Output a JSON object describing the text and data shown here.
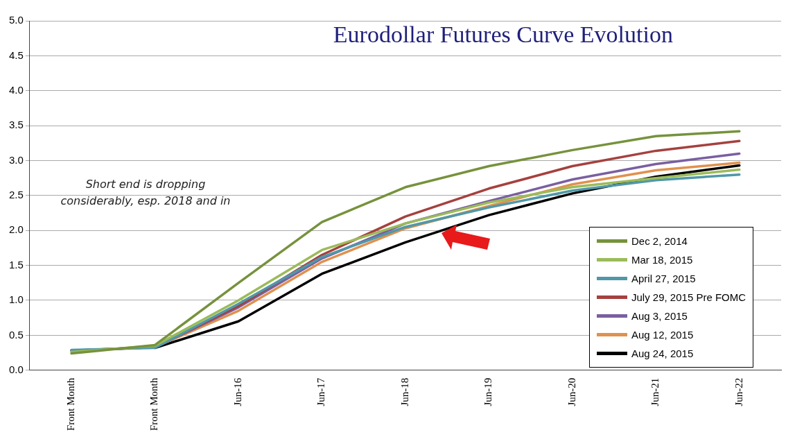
{
  "chart_data": {
    "type": "line",
    "title": "Eurodollar Futures Curve Evolution",
    "categories": [
      "Front Month",
      "Front Month",
      "Jun-16",
      "Jun-17",
      "Jun-18",
      "Jun-19",
      "Jun-20",
      "Jun-21",
      "Jun-22"
    ],
    "series": [
      {
        "name": "Dec 2, 2014",
        "color": "#76923c",
        "values": [
          0.24,
          0.36,
          1.25,
          2.12,
          2.62,
          2.92,
          3.15,
          3.35,
          3.42
        ]
      },
      {
        "name": "Mar 18, 2015",
        "color": "#9bbb59",
        "values": [
          0.26,
          0.35,
          1.0,
          1.72,
          2.1,
          2.4,
          2.62,
          2.75,
          2.87
        ]
      },
      {
        "name": "April 27, 2015",
        "color": "#4f98a8",
        "values": [
          0.29,
          0.32,
          0.95,
          1.62,
          2.05,
          2.33,
          2.57,
          2.72,
          2.8
        ]
      },
      {
        "name": "July 29, 2015 Pre FOMC",
        "color": "#a5413e",
        "values": [
          0.28,
          0.33,
          0.92,
          1.65,
          2.2,
          2.6,
          2.92,
          3.14,
          3.28
        ]
      },
      {
        "name": "Aug 3, 2015",
        "color": "#7a5fa0",
        "values": [
          0.28,
          0.33,
          0.9,
          1.6,
          2.1,
          2.42,
          2.73,
          2.95,
          3.1
        ]
      },
      {
        "name": "Aug 12, 2015",
        "color": "#e0914f",
        "values": [
          0.28,
          0.33,
          0.85,
          1.55,
          2.03,
          2.35,
          2.66,
          2.86,
          2.97
        ]
      },
      {
        "name": "Aug 24, 2015",
        "color": "#000000",
        "values": [
          null,
          0.32,
          0.7,
          1.38,
          1.83,
          2.22,
          2.53,
          2.77,
          2.93
        ]
      }
    ],
    "ylim": [
      0,
      5
    ],
    "yticks": [
      {
        "value": 0,
        "label": "0.0"
      },
      0.5,
      {
        "value": 1,
        "label": "1.0"
      },
      1.5,
      {
        "value": 2,
        "label": "2.0"
      },
      2.5,
      {
        "value": 3,
        "label": "3.0"
      },
      3.5,
      {
        "value": 4,
        "label": "4.0"
      },
      4.5,
      {
        "value": 5,
        "label": "5.0"
      }
    ],
    "grid": "y",
    "legend": "bottom right",
    "marker": "none",
    "line_style": "solid",
    "annotations": [
      {
        "text": "Short end is dropping considerably, esp. 2018 and in"
      }
    ]
  }
}
